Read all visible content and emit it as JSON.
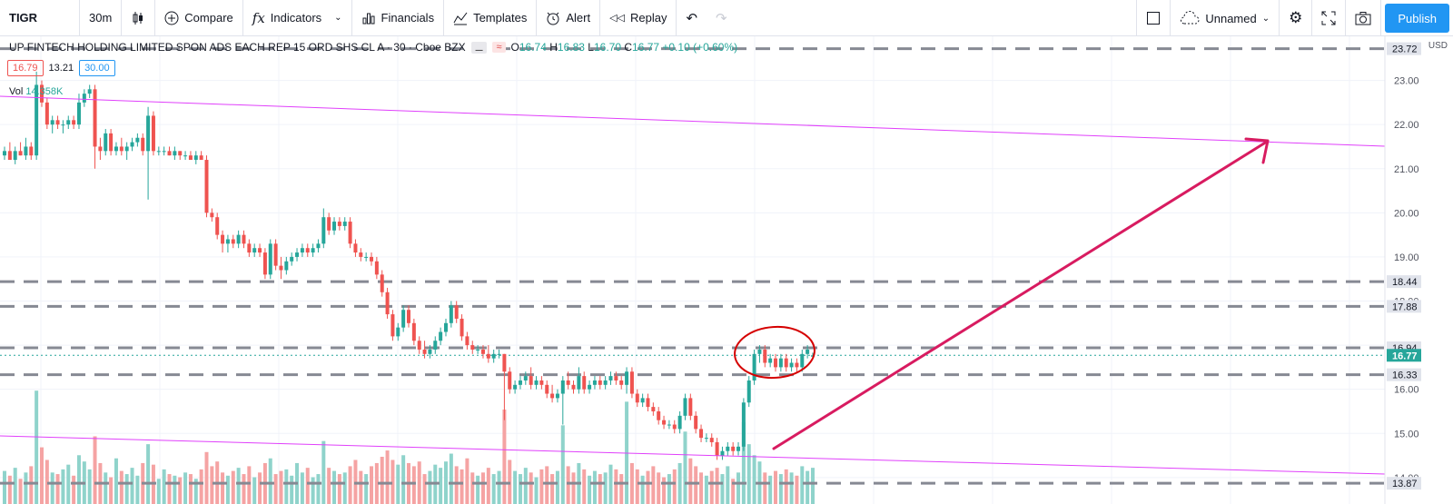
{
  "toolbar": {
    "symbol": "TIGR",
    "interval": "30m",
    "compare": "Compare",
    "indicators": "Indicators",
    "financials": "Financials",
    "templates": "Templates",
    "alert": "Alert",
    "replay": "Replay",
    "layout_name": "Unnamed",
    "publish": "Publish"
  },
  "legend": {
    "title": "UP FINTECH HOLDING LIMITED SPON ADS EACH REP 15 ORD SHS CL A · 30 · Cboe BZX",
    "open_label": "O",
    "open": "16.74",
    "high_label": "H",
    "high": "16.83",
    "low_label": "L",
    "low": "16.70",
    "close_label": "C",
    "close": "16.77",
    "change": "+0.10 (+0.60%)",
    "bid": "16.79",
    "spread": "13.21",
    "ask": "30.00",
    "vol_label": "Vol",
    "vol_value": "14.358K"
  },
  "colors": {
    "up": "#26a69a",
    "down": "#ef5350",
    "vol_up": "#8fd3cb",
    "vol_down": "#f5a3a3",
    "trendline": "#e040fb",
    "arrow": "#d81b60",
    "circle": "#d50000",
    "accent": "#2196f3"
  },
  "chart_data": {
    "type": "candlestick",
    "symbol": "TIGR",
    "interval": "30",
    "currency": "USD",
    "ylim": [
      13.4,
      24.0
    ],
    "y_ticks": [
      "23.00",
      "22.00",
      "21.00",
      "20.00",
      "19.00",
      "18.00",
      "17.00",
      "16.00",
      "15.00",
      "14.00"
    ],
    "horizontal_levels": [
      "23.72",
      "18.44",
      "17.88",
      "16.94",
      "16.33",
      "13.87"
    ],
    "last_price": "16.77",
    "candles": [
      {
        "o": 21.3,
        "h": 21.5,
        "l": 21.2,
        "c": 21.4
      },
      {
        "o": 21.4,
        "h": 21.6,
        "l": 21.2,
        "c": 21.2
      },
      {
        "o": 21.2,
        "h": 21.5,
        "l": 21.1,
        "c": 21.4
      },
      {
        "o": 21.4,
        "h": 21.6,
        "l": 21.3,
        "c": 21.3
      },
      {
        "o": 21.3,
        "h": 21.7,
        "l": 21.2,
        "c": 21.5
      },
      {
        "o": 21.5,
        "h": 21.6,
        "l": 21.2,
        "c": 21.3
      },
      {
        "o": 21.3,
        "h": 23.2,
        "l": 21.2,
        "c": 22.9
      },
      {
        "o": 22.9,
        "h": 23.0,
        "l": 22.4,
        "c": 22.5
      },
      {
        "o": 22.5,
        "h": 22.6,
        "l": 21.9,
        "c": 22.0
      },
      {
        "o": 22.0,
        "h": 22.2,
        "l": 21.8,
        "c": 22.1
      },
      {
        "o": 22.1,
        "h": 22.2,
        "l": 21.9,
        "c": 22.0
      },
      {
        "o": 22.0,
        "h": 22.1,
        "l": 21.8,
        "c": 22.0
      },
      {
        "o": 22.0,
        "h": 22.2,
        "l": 21.9,
        "c": 22.1
      },
      {
        "o": 22.1,
        "h": 22.2,
        "l": 21.9,
        "c": 22.0
      },
      {
        "o": 22.0,
        "h": 22.7,
        "l": 21.9,
        "c": 22.5
      },
      {
        "o": 22.5,
        "h": 22.8,
        "l": 22.4,
        "c": 22.7
      },
      {
        "o": 22.7,
        "h": 22.9,
        "l": 22.6,
        "c": 22.8
      },
      {
        "o": 22.8,
        "h": 22.9,
        "l": 21.0,
        "c": 21.5
      },
      {
        "o": 21.5,
        "h": 21.7,
        "l": 21.2,
        "c": 21.4
      },
      {
        "o": 21.4,
        "h": 21.9,
        "l": 21.3,
        "c": 21.8
      },
      {
        "o": 21.8,
        "h": 21.9,
        "l": 21.3,
        "c": 21.4
      },
      {
        "o": 21.4,
        "h": 21.6,
        "l": 21.3,
        "c": 21.5
      },
      {
        "o": 21.5,
        "h": 21.7,
        "l": 21.3,
        "c": 21.4
      },
      {
        "o": 21.4,
        "h": 21.6,
        "l": 21.2,
        "c": 21.5
      },
      {
        "o": 21.5,
        "h": 21.7,
        "l": 21.4,
        "c": 21.6
      },
      {
        "o": 21.6,
        "h": 21.8,
        "l": 21.5,
        "c": 21.7
      },
      {
        "o": 21.7,
        "h": 21.8,
        "l": 21.3,
        "c": 21.4
      },
      {
        "o": 21.4,
        "h": 22.4,
        "l": 20.3,
        "c": 22.2
      },
      {
        "o": 22.2,
        "h": 22.3,
        "l": 21.3,
        "c": 21.4
      },
      {
        "o": 21.4,
        "h": 21.5,
        "l": 21.3,
        "c": 21.4
      },
      {
        "o": 21.4,
        "h": 21.5,
        "l": 21.3,
        "c": 21.4
      },
      {
        "o": 21.4,
        "h": 21.5,
        "l": 21.3,
        "c": 21.3
      },
      {
        "o": 21.3,
        "h": 21.5,
        "l": 21.2,
        "c": 21.4
      },
      {
        "o": 21.4,
        "h": 21.4,
        "l": 21.2,
        "c": 21.3
      },
      {
        "o": 21.3,
        "h": 21.4,
        "l": 21.2,
        "c": 21.3
      },
      {
        "o": 21.3,
        "h": 21.4,
        "l": 21.2,
        "c": 21.2
      },
      {
        "o": 21.2,
        "h": 21.4,
        "l": 21.1,
        "c": 21.3
      },
      {
        "o": 21.3,
        "h": 21.4,
        "l": 21.2,
        "c": 21.2
      },
      {
        "o": 21.2,
        "h": 21.3,
        "l": 19.9,
        "c": 20.0
      },
      {
        "o": 20.0,
        "h": 20.1,
        "l": 19.8,
        "c": 19.9
      },
      {
        "o": 19.9,
        "h": 20.0,
        "l": 19.4,
        "c": 19.5
      },
      {
        "o": 19.5,
        "h": 19.6,
        "l": 19.1,
        "c": 19.3
      },
      {
        "o": 19.3,
        "h": 19.5,
        "l": 19.1,
        "c": 19.4
      },
      {
        "o": 19.4,
        "h": 19.5,
        "l": 19.2,
        "c": 19.3
      },
      {
        "o": 19.3,
        "h": 19.6,
        "l": 19.2,
        "c": 19.5
      },
      {
        "o": 19.5,
        "h": 19.6,
        "l": 19.2,
        "c": 19.3
      },
      {
        "o": 19.3,
        "h": 19.4,
        "l": 19.0,
        "c": 19.1
      },
      {
        "o": 19.1,
        "h": 19.3,
        "l": 19.0,
        "c": 19.2
      },
      {
        "o": 19.2,
        "h": 19.3,
        "l": 19.0,
        "c": 19.1
      },
      {
        "o": 19.1,
        "h": 19.2,
        "l": 18.5,
        "c": 18.6
      },
      {
        "o": 18.6,
        "h": 19.4,
        "l": 18.5,
        "c": 19.3
      },
      {
        "o": 19.3,
        "h": 19.4,
        "l": 18.7,
        "c": 18.8
      },
      {
        "o": 18.8,
        "h": 19.0,
        "l": 18.5,
        "c": 18.7
      },
      {
        "o": 18.7,
        "h": 19.0,
        "l": 18.6,
        "c": 18.9
      },
      {
        "o": 18.9,
        "h": 19.1,
        "l": 18.8,
        "c": 19.0
      },
      {
        "o": 19.0,
        "h": 19.2,
        "l": 18.9,
        "c": 19.1
      },
      {
        "o": 19.1,
        "h": 19.3,
        "l": 19.0,
        "c": 19.2
      },
      {
        "o": 19.2,
        "h": 19.3,
        "l": 19.0,
        "c": 19.1
      },
      {
        "o": 19.1,
        "h": 19.3,
        "l": 19.0,
        "c": 19.2
      },
      {
        "o": 19.2,
        "h": 19.4,
        "l": 19.1,
        "c": 19.3
      },
      {
        "o": 19.3,
        "h": 20.1,
        "l": 19.2,
        "c": 19.9
      },
      {
        "o": 19.9,
        "h": 20.0,
        "l": 19.5,
        "c": 19.6
      },
      {
        "o": 19.6,
        "h": 19.9,
        "l": 19.5,
        "c": 19.8
      },
      {
        "o": 19.8,
        "h": 19.9,
        "l": 19.6,
        "c": 19.7
      },
      {
        "o": 19.7,
        "h": 19.9,
        "l": 19.6,
        "c": 19.8
      },
      {
        "o": 19.8,
        "h": 19.9,
        "l": 19.2,
        "c": 19.3
      },
      {
        "o": 19.3,
        "h": 19.4,
        "l": 19.0,
        "c": 19.1
      },
      {
        "o": 19.1,
        "h": 19.2,
        "l": 18.9,
        "c": 19.0
      },
      {
        "o": 19.0,
        "h": 19.1,
        "l": 18.9,
        "c": 19.0
      },
      {
        "o": 19.0,
        "h": 19.1,
        "l": 18.8,
        "c": 18.9
      },
      {
        "o": 18.9,
        "h": 19.0,
        "l": 18.5,
        "c": 18.6
      },
      {
        "o": 18.6,
        "h": 18.7,
        "l": 18.1,
        "c": 18.2
      },
      {
        "o": 18.2,
        "h": 18.3,
        "l": 17.6,
        "c": 17.7
      },
      {
        "o": 17.7,
        "h": 17.8,
        "l": 17.1,
        "c": 17.2
      },
      {
        "o": 17.2,
        "h": 17.5,
        "l": 17.1,
        "c": 17.4
      },
      {
        "o": 17.4,
        "h": 17.9,
        "l": 17.3,
        "c": 17.8
      },
      {
        "o": 17.8,
        "h": 17.9,
        "l": 17.4,
        "c": 17.5
      },
      {
        "o": 17.5,
        "h": 17.6,
        "l": 17.0,
        "c": 17.1
      },
      {
        "o": 17.1,
        "h": 17.2,
        "l": 16.8,
        "c": 16.9
      },
      {
        "o": 16.9,
        "h": 17.1,
        "l": 16.7,
        "c": 16.8
      },
      {
        "o": 16.8,
        "h": 17.0,
        "l": 16.7,
        "c": 16.9
      },
      {
        "o": 16.9,
        "h": 17.2,
        "l": 16.8,
        "c": 17.1
      },
      {
        "o": 17.1,
        "h": 17.4,
        "l": 17.0,
        "c": 17.3
      },
      {
        "o": 17.3,
        "h": 17.6,
        "l": 17.2,
        "c": 17.5
      },
      {
        "o": 17.5,
        "h": 18.0,
        "l": 17.4,
        "c": 17.9
      },
      {
        "o": 17.9,
        "h": 18.0,
        "l": 17.5,
        "c": 17.6
      },
      {
        "o": 17.6,
        "h": 17.7,
        "l": 17.1,
        "c": 17.2
      },
      {
        "o": 17.2,
        "h": 17.3,
        "l": 16.9,
        "c": 17.0
      },
      {
        "o": 17.0,
        "h": 17.1,
        "l": 16.8,
        "c": 16.9
      },
      {
        "o": 16.9,
        "h": 17.0,
        "l": 16.8,
        "c": 16.9
      },
      {
        "o": 16.9,
        "h": 17.0,
        "l": 16.7,
        "c": 16.8
      },
      {
        "o": 16.8,
        "h": 17.0,
        "l": 16.6,
        "c": 16.7
      },
      {
        "o": 16.7,
        "h": 16.9,
        "l": 16.6,
        "c": 16.8
      },
      {
        "o": 16.8,
        "h": 16.9,
        "l": 16.7,
        "c": 16.8
      },
      {
        "o": 16.8,
        "h": 16.8,
        "l": 15.3,
        "c": 16.4
      },
      {
        "o": 16.4,
        "h": 16.5,
        "l": 15.9,
        "c": 16.0
      },
      {
        "o": 16.0,
        "h": 16.2,
        "l": 15.9,
        "c": 16.1
      },
      {
        "o": 16.1,
        "h": 16.3,
        "l": 16.0,
        "c": 16.2
      },
      {
        "o": 16.2,
        "h": 16.4,
        "l": 16.1,
        "c": 16.3
      },
      {
        "o": 16.3,
        "h": 16.5,
        "l": 16.0,
        "c": 16.1
      },
      {
        "o": 16.1,
        "h": 16.3,
        "l": 16.0,
        "c": 16.2
      },
      {
        "o": 16.2,
        "h": 16.3,
        "l": 16.0,
        "c": 16.1
      },
      {
        "o": 16.1,
        "h": 16.2,
        "l": 15.8,
        "c": 15.9
      },
      {
        "o": 15.9,
        "h": 16.1,
        "l": 15.7,
        "c": 15.8
      },
      {
        "o": 15.8,
        "h": 16.0,
        "l": 15.7,
        "c": 15.9
      },
      {
        "o": 15.9,
        "h": 16.3,
        "l": 15.2,
        "c": 16.2
      },
      {
        "o": 16.2,
        "h": 16.4,
        "l": 16.0,
        "c": 16.1
      },
      {
        "o": 16.1,
        "h": 16.2,
        "l": 15.9,
        "c": 16.0
      },
      {
        "o": 16.0,
        "h": 16.5,
        "l": 15.9,
        "c": 16.3
      },
      {
        "o": 16.3,
        "h": 16.4,
        "l": 15.9,
        "c": 16.0
      },
      {
        "o": 16.0,
        "h": 16.2,
        "l": 15.9,
        "c": 16.1
      },
      {
        "o": 16.1,
        "h": 16.3,
        "l": 16.0,
        "c": 16.2
      },
      {
        "o": 16.2,
        "h": 16.3,
        "l": 16.0,
        "c": 16.1
      },
      {
        "o": 16.1,
        "h": 16.3,
        "l": 16.0,
        "c": 16.2
      },
      {
        "o": 16.2,
        "h": 16.4,
        "l": 16.1,
        "c": 16.3
      },
      {
        "o": 16.3,
        "h": 16.4,
        "l": 16.1,
        "c": 16.2
      },
      {
        "o": 16.2,
        "h": 16.3,
        "l": 16.0,
        "c": 16.1
      },
      {
        "o": 16.1,
        "h": 16.5,
        "l": 15.9,
        "c": 16.4
      },
      {
        "o": 16.4,
        "h": 16.5,
        "l": 15.8,
        "c": 15.9
      },
      {
        "o": 15.9,
        "h": 16.0,
        "l": 15.6,
        "c": 15.7
      },
      {
        "o": 15.7,
        "h": 15.9,
        "l": 15.6,
        "c": 15.8
      },
      {
        "o": 15.8,
        "h": 15.9,
        "l": 15.5,
        "c": 15.6
      },
      {
        "o": 15.6,
        "h": 15.7,
        "l": 15.4,
        "c": 15.5
      },
      {
        "o": 15.5,
        "h": 15.6,
        "l": 15.2,
        "c": 15.3
      },
      {
        "o": 15.3,
        "h": 15.4,
        "l": 15.1,
        "c": 15.2
      },
      {
        "o": 15.2,
        "h": 15.3,
        "l": 15.1,
        "c": 15.2
      },
      {
        "o": 15.2,
        "h": 15.3,
        "l": 15.0,
        "c": 15.1
      },
      {
        "o": 15.1,
        "h": 15.5,
        "l": 15.0,
        "c": 15.4
      },
      {
        "o": 15.4,
        "h": 15.9,
        "l": 15.3,
        "c": 15.8
      },
      {
        "o": 15.8,
        "h": 15.9,
        "l": 15.3,
        "c": 15.4
      },
      {
        "o": 15.4,
        "h": 15.5,
        "l": 15.0,
        "c": 15.1
      },
      {
        "o": 15.1,
        "h": 15.2,
        "l": 14.8,
        "c": 14.9
      },
      {
        "o": 14.9,
        "h": 15.0,
        "l": 14.8,
        "c": 14.9
      },
      {
        "o": 14.9,
        "h": 15.0,
        "l": 14.7,
        "c": 14.8
      },
      {
        "o": 14.8,
        "h": 14.9,
        "l": 14.4,
        "c": 14.5
      },
      {
        "o": 14.5,
        "h": 14.7,
        "l": 14.4,
        "c": 14.6
      },
      {
        "o": 14.6,
        "h": 14.8,
        "l": 14.5,
        "c": 14.7
      },
      {
        "o": 14.7,
        "h": 14.8,
        "l": 14.5,
        "c": 14.6
      },
      {
        "o": 14.6,
        "h": 14.8,
        "l": 14.5,
        "c": 14.7
      },
      {
        "o": 14.7,
        "h": 15.8,
        "l": 14.6,
        "c": 15.7
      },
      {
        "o": 15.7,
        "h": 16.3,
        "l": 15.6,
        "c": 16.2
      },
      {
        "o": 16.2,
        "h": 16.9,
        "l": 16.1,
        "c": 16.8
      },
      {
        "o": 16.8,
        "h": 17.0,
        "l": 16.6,
        "c": 16.9
      },
      {
        "o": 16.9,
        "h": 17.0,
        "l": 16.5,
        "c": 16.6
      },
      {
        "o": 16.6,
        "h": 16.8,
        "l": 16.5,
        "c": 16.7
      },
      {
        "o": 16.7,
        "h": 16.8,
        "l": 16.4,
        "c": 16.5
      },
      {
        "o": 16.5,
        "h": 16.8,
        "l": 16.4,
        "c": 16.7
      },
      {
        "o": 16.7,
        "h": 16.8,
        "l": 16.4,
        "c": 16.5
      },
      {
        "o": 16.5,
        "h": 16.7,
        "l": 16.4,
        "c": 16.6
      },
      {
        "o": 16.6,
        "h": 16.7,
        "l": 16.4,
        "c": 16.5
      },
      {
        "o": 16.5,
        "h": 16.9,
        "l": 16.4,
        "c": 16.8
      },
      {
        "o": 16.8,
        "h": 17.0,
        "l": 16.7,
        "c": 16.9
      },
      {
        "o": 16.74,
        "h": 16.83,
        "l": 16.7,
        "c": 16.77
      }
    ],
    "volumes": [
      2.1,
      1.8,
      2.3,
      1.6,
      2.0,
      2.4,
      7.2,
      3.6,
      2.8,
      2.0,
      1.9,
      2.2,
      2.5,
      1.8,
      3.1,
      2.7,
      2.2,
      4.3,
      2.6,
      2.0,
      1.7,
      2.9,
      2.1,
      1.9,
      2.3,
      1.8,
      2.6,
      3.8,
      2.5,
      1.6,
      2.2,
      1.9,
      1.8,
      1.7,
      2.0,
      1.9,
      1.6,
      2.2,
      3.3,
      2.4,
      2.7,
      2.0,
      1.8,
      2.1,
      2.3,
      1.9,
      2.4,
      1.7,
      2.0,
      2.6,
      2.9,
      1.9,
      2.1,
      2.2,
      1.8,
      2.6,
      2.0,
      2.3,
      1.7,
      1.9,
      4.0,
      2.3,
      2.1,
      1.9,
      2.0,
      2.4,
      2.8,
      2.1,
      1.9,
      2.4,
      2.6,
      3.0,
      3.4,
      2.8,
      2.5,
      3.1,
      2.6,
      2.4,
      2.7,
      1.9,
      2.1,
      2.5,
      2.3,
      2.7,
      3.2,
      2.4,
      2.2,
      2.9,
      2.0,
      1.8,
      2.0,
      2.3,
      1.9,
      2.1,
      6.0,
      2.8,
      2.1,
      1.9,
      2.3,
      2.0,
      1.7,
      2.2,
      2.4,
      1.9,
      2.1,
      5.0,
      2.4,
      2.0,
      2.6,
      2.2,
      1.8,
      2.1,
      1.9,
      2.0,
      2.5,
      2.2,
      1.9,
      6.5,
      2.6,
      2.2,
      1.8,
      2.1,
      2.4,
      2.0,
      1.7,
      1.9,
      2.2,
      2.6,
      4.6,
      2.9,
      2.4,
      2.0,
      1.8,
      2.1,
      2.3,
      1.9,
      2.4,
      1.6,
      2.0,
      5.2,
      3.8,
      3.1,
      2.7,
      2.0,
      1.8,
      2.1,
      1.9,
      2.2,
      2.0,
      1.8,
      2.4,
      2.1,
      2.3
    ]
  }
}
